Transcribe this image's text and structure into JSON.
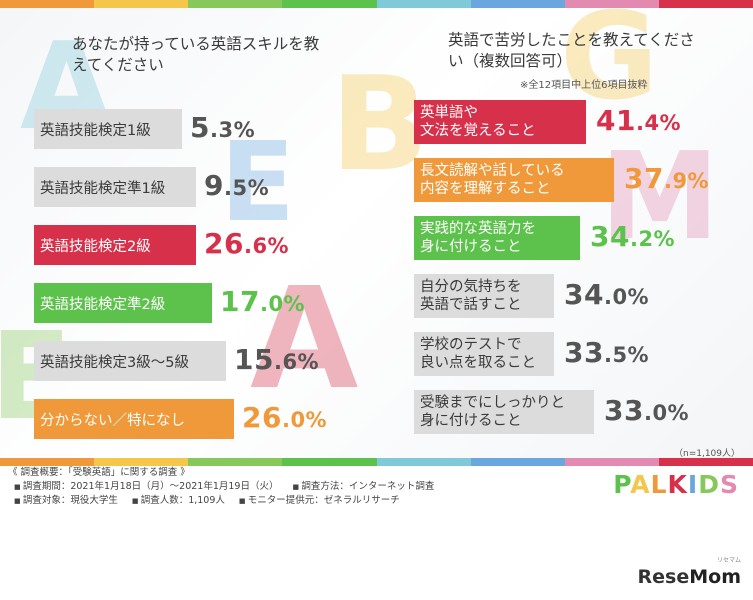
{
  "colors": {
    "red": "#d6304a",
    "orange": "#f0993a",
    "green": "#5cc24c",
    "gray": "#dcdcdc",
    "dark_text": "#555555",
    "stripe": [
      "#f0993a",
      "#f4c64a",
      "#86c85a",
      "#5cc24c",
      "#7fc9d8",
      "#6aa7de",
      "#e28ab0",
      "#d6304a"
    ]
  },
  "chart_data": [
    {
      "type": "bar",
      "title": "あなたが持っている英語スキルを教えてください",
      "categories": [
        "英語技能検定1級",
        "英語技能検定準1級",
        "英語技能検定2級",
        "英語技能検定準2級",
        "英語技能検定3級～5級",
        "分からない／特になし"
      ],
      "values": [
        5.3,
        9.5,
        26.6,
        17.0,
        15.6,
        26.0
      ],
      "value_labels": [
        "5.3%",
        "9.5%",
        "26.6%",
        "17.0%",
        "15.6%",
        "26.0%"
      ],
      "highlight": [
        "gray",
        "gray",
        "red",
        "green",
        "gray",
        "orange"
      ]
    },
    {
      "type": "bar",
      "title": "英語で苦労したことを教えてください（複数回答可）",
      "note": "※全12項目中上位6項目抜粋",
      "categories": [
        [
          "英単語や",
          "文法を覚えること"
        ],
        [
          "長文読解や話している",
          "内容を理解すること"
        ],
        [
          "実践的な英語力を",
          "身に付けること"
        ],
        [
          "自分の気持ちを",
          "英語で話すこと"
        ],
        [
          "学校のテストで",
          "良い点を取ること"
        ],
        [
          "受験までにしっかりと",
          "身に付けること"
        ]
      ],
      "values": [
        41.4,
        37.9,
        34.2,
        34.0,
        33.5,
        33.0
      ],
      "value_labels": [
        "41.4%",
        "37.9%",
        "34.2%",
        "34.0%",
        "33.5%",
        "33.0%"
      ],
      "highlight": [
        "red",
        "orange",
        "green",
        "gray",
        "gray",
        "gray"
      ],
      "sample": "（n=1,109人）"
    }
  ],
  "survey": {
    "title": "《 調査概要：「受験英語」に関する調査 》",
    "period": "調査期間：2021年1月18日（月）～2021年1月19日（火）",
    "method": "調査方法：インターネット調査",
    "target": "調査対象：現役大学生",
    "count": "調査人数：1,109人",
    "provider": "モニター提供元：ゼネラルリサーチ"
  },
  "brand": {
    "palkids": [
      "P",
      "A",
      "L",
      "K",
      "I",
      "D",
      "S"
    ],
    "palkids_colors": [
      "#5cc24c",
      "#f4c64a",
      "#f0993a",
      "#d6304a",
      "#6aa7de",
      "#86c85a",
      "#e28ab0"
    ],
    "logo_main": "Rese",
    "logo_mom": "Mom",
    "logo_sub": "リセマム"
  }
}
